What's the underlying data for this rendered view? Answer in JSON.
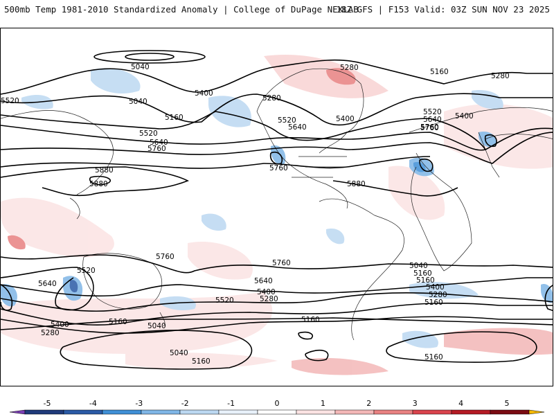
{
  "header": {
    "title_left": "500mb Temp 1981-2010 Standardized Anomaly | College of DuPage NEXLAB",
    "title_right": "18Z GFS | F153 Valid: 03Z SUN NOV 23 2025"
  },
  "map": {
    "contour_labels": [
      "5040",
      "5040",
      "5400",
      "5280",
      "5160",
      "5520",
      "5640",
      "5760",
      "5880",
      "5880",
      "5280",
      "5400",
      "5520",
      "5640",
      "5760",
      "5760",
      "5880",
      "5160",
      "5280",
      "5520",
      "5640",
      "5760",
      "5400",
      "5520",
      "5640",
      "5760",
      "5400",
      "5280",
      "5160",
      "5040",
      "5040",
      "5160",
      "5760",
      "5640",
      "5520",
      "5400",
      "5280",
      "5160",
      "5160",
      "5520",
      "5400",
      "5280",
      "5160",
      "5040",
      "5160",
      "5160"
    ]
  },
  "colorbar": {
    "ticks": [
      "-5",
      "-4",
      "-3",
      "-2",
      "-1",
      "0",
      "1",
      "2",
      "3",
      "4",
      "5"
    ],
    "colors": [
      "#7b3fb4",
      "#1f3a7a",
      "#2a5aa6",
      "#3f8fd6",
      "#7fb6e6",
      "#bcd8f1",
      "#e8f1fa",
      "#ffffff",
      "#fbe3e3",
      "#f3b7b7",
      "#e88181",
      "#d9434c",
      "#b41a24",
      "#7a0b12",
      "#f5b800"
    ]
  }
}
